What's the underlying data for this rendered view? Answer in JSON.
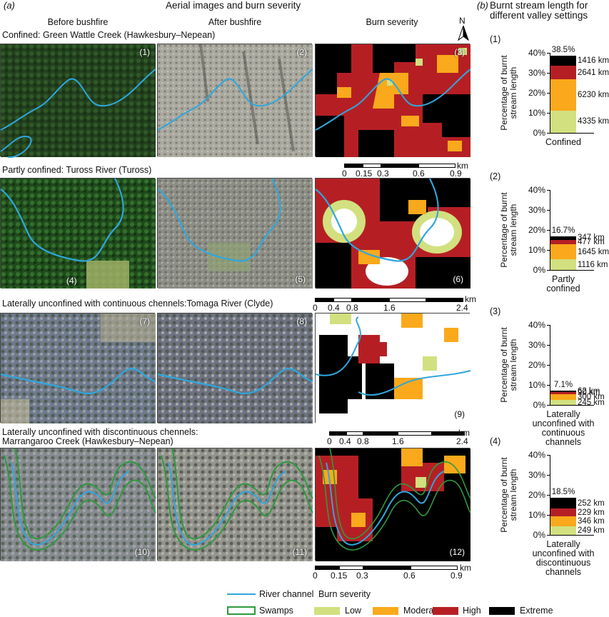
{
  "panel_a": {
    "letter": "(a)",
    "title": "Aerial images and burn severity",
    "col_headers": [
      "Before bushfire",
      "After bushfire",
      "Burn severity"
    ],
    "north_label": "N",
    "rows": [
      {
        "heading": "Confined: Green Wattle Creek (Hawkesbury–Nepean)",
        "panels": [
          "(1)",
          "(2)",
          "(3)"
        ]
      },
      {
        "heading": "Partly confined: Tuross River (Tuross)",
        "panels": [
          "(4)",
          "(5)",
          "(6)"
        ]
      },
      {
        "heading": "Laterally unconfined with continuous chennels:Tomaga River (Clyde)",
        "panels": [
          "(7)",
          "(8)",
          "(9)"
        ]
      },
      {
        "heading_line1": "Laterally unconfined with discontinuous chennels:",
        "heading_line2": "Marrangaroo Creek (Hawkesbury–Nepean)",
        "panels": [
          "(10)",
          "(11)",
          "(12)"
        ]
      }
    ],
    "scalebars": [
      {
        "unit": "km",
        "ticks": [
          "0",
          "0.15",
          "0.3",
          "0.6",
          "0.9"
        ]
      },
      {
        "unit": "km",
        "ticks": [
          "0",
          "0.4",
          "0.8",
          "1.6",
          "2.4"
        ]
      },
      {
        "unit": "km",
        "ticks": [
          "0",
          "0.4",
          "0.8",
          "1.6",
          "2.4"
        ]
      },
      {
        "unit": "km",
        "ticks": [
          "0",
          "0.15",
          "0.3",
          "0.6",
          "0.9"
        ]
      }
    ]
  },
  "panel_b": {
    "letter": "(b)",
    "title_line1": "Burnt stream length for",
    "title_line2": "different valley settings",
    "ylabel_line1": "Percentage of burnt",
    "ylabel_line2": "stream length",
    "yticks": [
      "40%",
      "30%",
      "20%",
      "10%",
      "0%"
    ]
  },
  "chart_data": [
    {
      "type": "bar",
      "number": "(1)",
      "category": "Confined",
      "total": "38.5%",
      "ylim": [
        0,
        40
      ],
      "series": [
        {
          "name": "Low",
          "value": 11.2,
          "label": "4335 km"
        },
        {
          "name": "Moderate",
          "value": 15.6,
          "label": "6230 km"
        },
        {
          "name": "High",
          "value": 6.6,
          "label": "2641 km"
        },
        {
          "name": "Extreme",
          "value": 5.1,
          "label": "1416 km"
        }
      ]
    },
    {
      "type": "bar",
      "number": "(2)",
      "category_line1": "Partly",
      "category_line2": "confined",
      "total": "16.7%",
      "ylim": [
        0,
        40
      ],
      "series": [
        {
          "name": "Low",
          "value": 5.2,
          "label": "1116 km"
        },
        {
          "name": "Moderate",
          "value": 7.7,
          "label": "1645 km"
        },
        {
          "name": "High",
          "value": 2.2,
          "label": "477 km"
        },
        {
          "name": "Extreme",
          "value": 1.6,
          "label": "347 km"
        }
      ]
    },
    {
      "type": "bar",
      "number": "(3)",
      "category_line1": "Laterally",
      "category_line2": "unconfined with",
      "category_line3": "continuous",
      "category_line4": "channels",
      "total": "7.1%",
      "ylim": [
        0,
        40
      ],
      "series": [
        {
          "name": "Low",
          "value": 2.5,
          "label": "245 km"
        },
        {
          "name": "Moderate",
          "value": 3.0,
          "label": "300 km"
        },
        {
          "name": "High",
          "value": 0.9,
          "label": "90 km"
        },
        {
          "name": "Extreme",
          "value": 0.7,
          "label": "62 km"
        }
      ]
    },
    {
      "type": "bar",
      "number": "(4)",
      "category_line1": "Laterally",
      "category_line2": "unconfined with",
      "category_line3": "discontinuous",
      "category_line4": "channels",
      "total": "18.5%",
      "ylim": [
        0,
        40
      ],
      "series": [
        {
          "name": "Low",
          "value": 4.2,
          "label": "249 km"
        },
        {
          "name": "Moderate",
          "value": 5.0,
          "label": "346 km"
        },
        {
          "name": "High",
          "value": 4.0,
          "label": "229 km"
        },
        {
          "name": "Extreme",
          "value": 5.3,
          "label": "252 km"
        }
      ]
    }
  ],
  "legend": {
    "river": "River channel",
    "swamps": "Swamps",
    "burn_title": "Burn severity",
    "classes": [
      "Low",
      "Moderate",
      "High",
      "Extreme"
    ]
  },
  "colors": {
    "low": "#d2e07f",
    "moderate": "#f9a91b",
    "high": "#b51f24",
    "extreme": "#000000",
    "river": "#2fa7dc",
    "swamp": "#2e9a3e"
  }
}
